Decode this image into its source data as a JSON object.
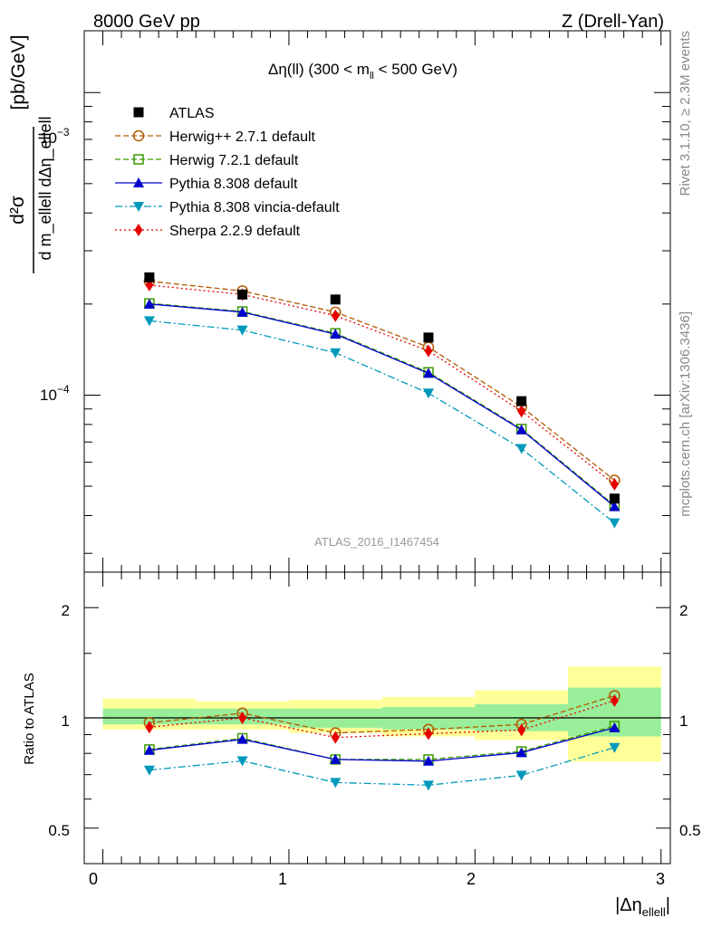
{
  "header": {
    "left": "8000 GeV pp",
    "right": "Z (Drell-Yan)"
  },
  "side_labels": {
    "rivet": "Rivet 3.1.10, ≥ 2.3M events",
    "mcplots": "mcplots.cern.ch [arXiv:1306.3436]"
  },
  "main_plot": {
    "title_main": "Δη(ll) (300 < m",
    "title_sub": "ll",
    "title_end": " < 500 GeV)",
    "watermark": "ATLAS_2016_I1467454",
    "ylabel_bracket": "[pb/GeV]",
    "ylabel_numerator": "d²σ",
    "ylabel_denominator": "d m_ellell dΔη_ellell",
    "y_tick_labels": {
      "e3": "10",
      "e3_exp": "−3",
      "e4": "10",
      "e4_exp": "−4"
    }
  },
  "ratio_plot": {
    "ylabel": "Ratio to ATLAS",
    "y_tick_labels": [
      "0.5",
      "1",
      "2"
    ],
    "x_tick_labels": [
      "0",
      "1",
      "2",
      "3"
    ],
    "xlabel": "|Δη",
    "xlabel_sub": "ellell",
    "xlabel_end": "|"
  },
  "legend": [
    {
      "name": "ATLAS",
      "color": "#000000",
      "marker": "square-filled",
      "line": "none"
    },
    {
      "name": "Herwig++ 2.7.1 default",
      "color": "#b35a00",
      "marker": "circle-open",
      "line": "dashed"
    },
    {
      "name": "Herwig 7.2.1 default",
      "color": "#3a9a00",
      "marker": "square-open",
      "line": "dashed"
    },
    {
      "name": "Pythia 8.308 default",
      "color": "#0000cc",
      "marker": "triangle-up",
      "line": "solid"
    },
    {
      "name": "Pythia 8.308 vincia-default",
      "color": "#0099bb",
      "marker": "triangle-down",
      "line": "dashdot"
    },
    {
      "name": "Sherpa 2.2.9 default",
      "color": "#e60000",
      "marker": "diamond",
      "line": "dotted"
    }
  ],
  "chart_data": [
    {
      "type": "line",
      "x_edges": [
        0,
        0.5,
        1.0,
        1.5,
        2.0,
        2.5,
        3.0
      ],
      "x": [
        0.25,
        0.75,
        1.25,
        1.75,
        2.25,
        2.75
      ],
      "xlim": [
        -0.1,
        3.05
      ],
      "ylim": [
        2.6e-05,
        0.0016
      ],
      "log_y": true,
      "series": [
        {
          "name": "ATLAS",
          "values": [
            0.000245,
            0.000215,
            0.000207,
            0.000155,
            9.55e-05,
            4.55e-05
          ]
        },
        {
          "name": "Herwig++ 2.7.1 default",
          "values": [
            0.000238,
            0.000221,
            0.000188,
            0.000144,
            9.15e-05,
            5.23e-05
          ]
        },
        {
          "name": "Herwig 7.2.1 default",
          "values": [
            0.000201,
            0.000189,
            0.00016,
            0.000119,
            7.73e-05,
            4.32e-05
          ]
        },
        {
          "name": "Pythia 8.308 default",
          "values": [
            0.0002,
            0.000188,
            0.000159,
            0.000118,
            7.68e-05,
            4.28e-05
          ]
        },
        {
          "name": "Pythia 8.308 vincia-default",
          "values": [
            0.000176,
            0.000164,
            0.000138,
            0.0001015,
            6.66e-05,
            3.78e-05
          ]
        },
        {
          "name": "Sherpa 2.2.9 default",
          "values": [
            0.000231,
            0.000215,
            0.000183,
            0.00014,
            8.85e-05,
            5.07e-05
          ]
        }
      ]
    },
    {
      "type": "line",
      "x": [
        0.25,
        0.75,
        1.25,
        1.75,
        2.25,
        2.75
      ],
      "xlim": [
        -0.1,
        3.05
      ],
      "ylim": [
        0.4,
        2.5
      ],
      "log_y": true,
      "ylabel": "Ratio to ATLAS",
      "bands": {
        "total": [
          [
            0.93,
            1.13
          ],
          [
            0.93,
            1.11
          ],
          [
            0.91,
            1.12
          ],
          [
            0.89,
            1.14
          ],
          [
            0.87,
            1.19
          ],
          [
            0.76,
            1.38
          ]
        ],
        "stat": [
          [
            0.96,
            1.06
          ],
          [
            0.96,
            1.06
          ],
          [
            0.94,
            1.06
          ],
          [
            0.93,
            1.07
          ],
          [
            0.92,
            1.09
          ],
          [
            0.89,
            1.21
          ]
        ]
      },
      "series": [
        {
          "name": "Herwig++ 2.7.1 default",
          "values": [
            0.97,
            1.03,
            0.91,
            0.93,
            0.96,
            1.15
          ]
        },
        {
          "name": "Herwig 7.2.1 default",
          "values": [
            0.82,
            0.88,
            0.77,
            0.77,
            0.81,
            0.95
          ]
        },
        {
          "name": "Pythia 8.308 default",
          "values": [
            0.816,
            0.874,
            0.77,
            0.762,
            0.804,
            0.94
          ]
        },
        {
          "name": "Pythia 8.308 vincia-default",
          "values": [
            0.72,
            0.763,
            0.666,
            0.655,
            0.697,
            0.83
          ]
        },
        {
          "name": "Sherpa 2.2.9 default",
          "values": [
            0.943,
            1.0,
            0.884,
            0.905,
            0.927,
            1.114
          ]
        }
      ]
    }
  ]
}
